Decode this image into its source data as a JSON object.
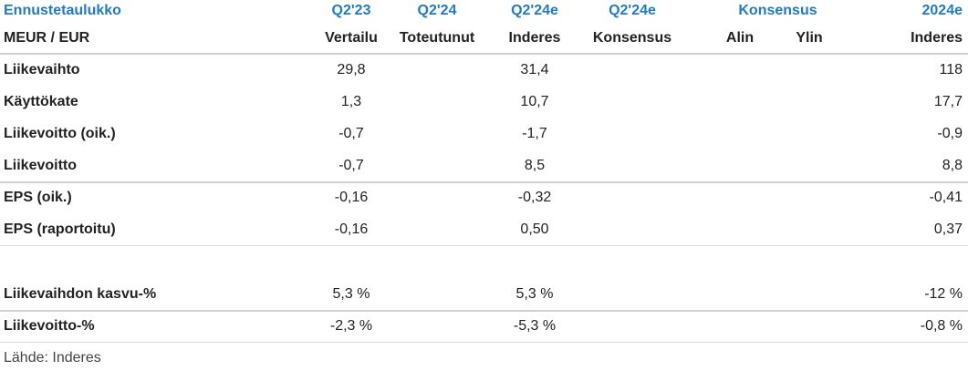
{
  "header": {
    "title": "Ennustetaulukko",
    "cols": {
      "q223": "Q2'23",
      "q224": "Q2'24",
      "q224e": "Q2'24e",
      "kons_q224e": "Q2'24e",
      "konsensus": "Konsensus",
      "y2024e": "2024e"
    },
    "sub": {
      "label": "MEUR / EUR",
      "q223": "Vertailu",
      "q224": "Toteutunut",
      "q224e": "Inderes",
      "kons": "Konsensus",
      "alin": "Alin",
      "ylin": "Ylin",
      "y2024e": "Inderes"
    }
  },
  "rows": [
    {
      "label": "Liikevaihto",
      "q223": "29,8",
      "q224e": "31,4",
      "y2024e": "118"
    },
    {
      "label": "Käyttökate",
      "q223": "1,3",
      "q224e": "10,7",
      "y2024e": "17,7"
    },
    {
      "label": "Liikevoitto (oik.)",
      "q223": "-0,7",
      "q224e": "-1,7",
      "y2024e": "-0,9"
    },
    {
      "label": "Liikevoitto",
      "q223": "-0,7",
      "q224e": "8,5",
      "y2024e": "8,8"
    },
    {
      "label": "EPS (oik.)",
      "q223": "-0,16",
      "q224e": "-0,32",
      "y2024e": "-0,41"
    },
    {
      "label": "EPS (raportoitu)",
      "q223": "-0,16",
      "q224e": "0,50",
      "y2024e": "0,37"
    },
    {
      "label": "Liikevaihdon kasvu-%",
      "q223": "5,3 %",
      "q224e": "5,3 %",
      "y2024e": "-12 %"
    },
    {
      "label": "Liikevoitto-%",
      "q223": "-2,3 %",
      "q224e": "-5,3 %",
      "y2024e": "-0,8 %"
    }
  ],
  "source": "Lähde: Inderes",
  "colors": {
    "accent": "#1f7bd1",
    "text": "#222222",
    "rule": "#d9d9d9"
  }
}
